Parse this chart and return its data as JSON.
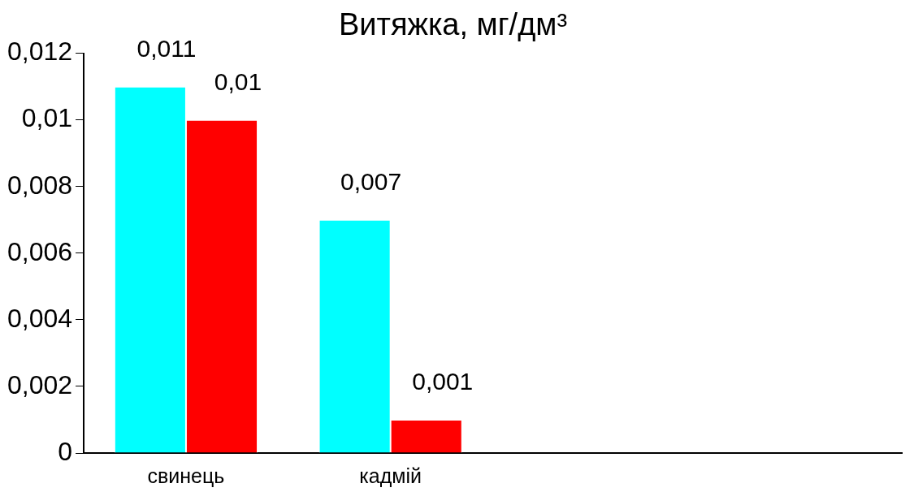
{
  "chart_data": {
    "type": "bar",
    "title": "Витяжка, мг/дм³",
    "categories": [
      "свинець",
      "кадмій",
      null,
      null
    ],
    "series": [
      {
        "color": "#00ffff",
        "values": [
          0.011,
          0.007,
          null,
          null
        ],
        "value_labels": [
          "0,011",
          "0,007",
          null,
          null
        ]
      },
      {
        "color": "#ff0000",
        "values": [
          0.01,
          0.001,
          null,
          null
        ],
        "value_labels": [
          "0,01",
          "0,001",
          null,
          null
        ]
      }
    ],
    "ylim": [
      0,
      0.012
    ],
    "yticks": [
      {
        "value": 0,
        "label": "0"
      },
      {
        "value": 0.002,
        "label": "0,002"
      },
      {
        "value": 0.004,
        "label": "0,004"
      },
      {
        "value": 0.006,
        "label": "0,006"
      },
      {
        "value": 0.008,
        "label": "0,008"
      },
      {
        "value": 0.01,
        "label": "0,01"
      },
      {
        "value": 0.012,
        "label": "0,012"
      }
    ],
    "grid": false,
    "legend": false
  }
}
